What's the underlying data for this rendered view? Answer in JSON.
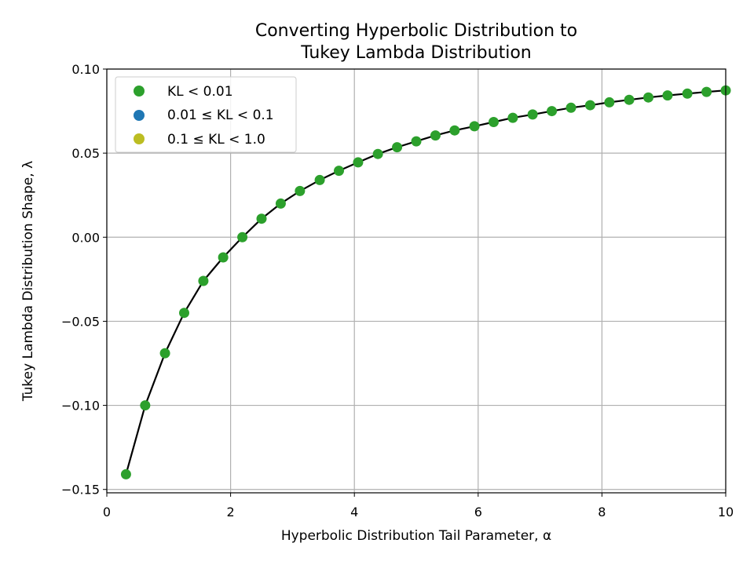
{
  "chart_data": {
    "type": "scatter",
    "title_line1": "Converting Hyperbolic Distribution to",
    "title_line2": "Tukey Lambda Distribution",
    "xlabel": "Hyperbolic Distribution Tail Parameter, α",
    "ylabel": "Tukey Lambda Distribution Shape, λ",
    "xlim": [
      0,
      10
    ],
    "ylim": [
      -0.152,
      0.1
    ],
    "xticks": [
      0,
      2,
      4,
      6,
      8,
      10
    ],
    "xtick_labels": [
      "0",
      "2",
      "4",
      "6",
      "8",
      "10"
    ],
    "yticks": [
      -0.15,
      -0.1,
      -0.05,
      0.0,
      0.05,
      0.1
    ],
    "ytick_labels": [
      "−0.15",
      "−0.10",
      "−0.05",
      "0.00",
      "0.05",
      "0.10"
    ],
    "grid": true,
    "legend_placement": "upper-left",
    "legend": [
      {
        "label": "KL < 0.01",
        "color": "#2ca02c"
      },
      {
        "label": "0.01 ≤ KL < 0.1",
        "color": "#1f77b4"
      },
      {
        "label": "0.1 ≤ KL < 1.0",
        "color": "#bcbd22"
      }
    ],
    "series": [
      {
        "name": "KL < 0.01",
        "color": "#2ca02c",
        "x": [
          0.31,
          0.62,
          0.94,
          1.25,
          1.56,
          1.88,
          2.19,
          2.5,
          2.81,
          3.12,
          3.44,
          3.75,
          4.06,
          4.38,
          4.69,
          5.0,
          5.31,
          5.62,
          5.94,
          6.25,
          6.56,
          6.88,
          7.19,
          7.5,
          7.81,
          8.12,
          8.44,
          8.75,
          9.06,
          9.38,
          9.69,
          10.0
        ],
        "y": [
          -0.141,
          -0.1,
          -0.069,
          -0.045,
          -0.026,
          -0.012,
          0.0,
          0.011,
          0.02,
          0.0275,
          0.034,
          0.0395,
          0.0445,
          0.0495,
          0.0535,
          0.057,
          0.0605,
          0.0635,
          0.066,
          0.0685,
          0.071,
          0.073,
          0.075,
          0.077,
          0.0785,
          0.0802,
          0.0817,
          0.0831,
          0.0843,
          0.0854,
          0.0864,
          0.0873
        ]
      },
      {
        "name": "0.01 ≤ KL < 0.1",
        "color": "#1f77b4",
        "x": [],
        "y": []
      },
      {
        "name": "0.1 ≤ KL < 1.0",
        "color": "#bcbd22",
        "x": [],
        "y": []
      }
    ],
    "fit_line_color": "#000000"
  }
}
